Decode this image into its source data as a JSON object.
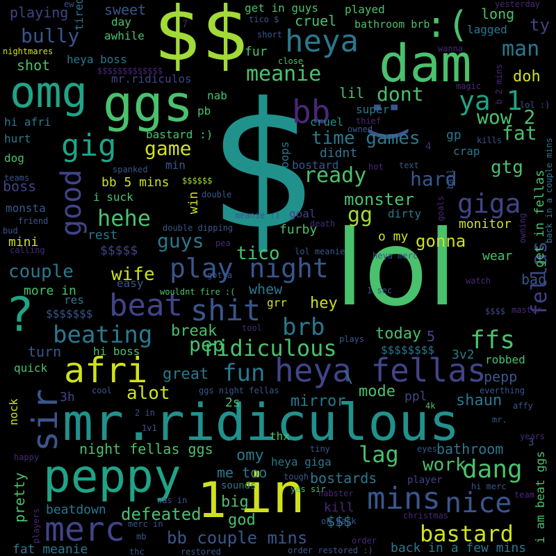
{
  "background": "#000000",
  "palette": {
    "yellow": "#d0e11c",
    "lime": "#a2da37",
    "green": "#4ac16d",
    "aqua": "#20a386",
    "teal": "#21918c",
    "tealblue": "#2a788e",
    "blue": "#39568c",
    "indigo": "#414487",
    "purple": "#482878",
    "violet": "#440154"
  },
  "words": [
    {
      "text": "$",
      "color": "teal"
    },
    {
      "text": "lol",
      "color": "green"
    },
    {
      "text": "$$",
      "color": "lime"
    },
    {
      "text": "mr.ridiculous",
      "color": "teal"
    },
    {
      "text": "dam",
      "color": "green"
    },
    {
      "text": "ggs",
      "color": "green"
    },
    {
      "text": "omg",
      "color": "aqua"
    },
    {
      "text": "peppy",
      "color": "aqua"
    },
    {
      "text": "in",
      "color": "yellow"
    },
    {
      "text": "1",
      "color": "yellow"
    },
    {
      "text": ":)",
      "color": "blue"
    },
    {
      "text": "heya fellas",
      "color": "indigo"
    },
    {
      "text": "merc",
      "color": "indigo"
    },
    {
      "text": "?",
      "color": "aqua"
    },
    {
      "text": "afri",
      "color": "yellow"
    },
    {
      "text": "sir",
      "color": "blue"
    },
    {
      "text": "mins",
      "color": "blue"
    },
    {
      "text": "nice",
      "color": "blue"
    },
    {
      "text": "beat",
      "color": "indigo"
    },
    {
      "text": "shit",
      "color": "blue"
    },
    {
      "text": "heya",
      "color": "tealblue"
    },
    {
      "text": "bb",
      "color": "purple"
    },
    {
      "text": "gig",
      "color": "aqua"
    },
    {
      "text": "good",
      "color": "indigo"
    },
    {
      "text": "giga",
      "color": "indigo"
    },
    {
      "text": "ya 1",
      "color": "aqua"
    },
    {
      "text": "play night",
      "color": "blue"
    },
    {
      "text": "beating",
      "color": "tealblue"
    },
    {
      "text": "ridiculous",
      "color": "green"
    },
    {
      "text": "brb",
      "color": "tealblue"
    },
    {
      "text": "ffs",
      "color": "green"
    },
    {
      "text": "dang",
      "color": "green"
    },
    {
      "text": "bastard",
      "color": "yellow"
    },
    {
      "text": "bb couple mins",
      "color": "blue"
    },
    {
      "text": ":(",
      "color": "green"
    },
    {
      "text": "fellas",
      "color": "indigo"
    },
    {
      "text": "meanie",
      "color": "green"
    },
    {
      "text": "hehe",
      "color": "green"
    },
    {
      "text": "fun",
      "color": "tealblue"
    },
    {
      "text": "pep",
      "color": "green"
    },
    {
      "text": "lag",
      "color": "green"
    },
    {
      "text": "wow 2",
      "color": "green"
    },
    {
      "text": "man",
      "color": "tealblue"
    },
    {
      "text": "bully",
      "color": "blue"
    },
    {
      "text": "gg",
      "color": "lime"
    },
    {
      "text": "game",
      "color": "yellow"
    },
    {
      "text": "fat",
      "color": "green"
    },
    {
      "text": "ready",
      "color": "green"
    },
    {
      "text": "hard",
      "color": "blue"
    },
    {
      "text": "gtg",
      "color": "green"
    },
    {
      "text": "time games",
      "color": "tealblue"
    },
    {
      "text": "dont",
      "color": "green"
    },
    {
      "text": "guys",
      "color": "tealblue"
    },
    {
      "text": "couple",
      "color": "tealblue"
    },
    {
      "text": "wife",
      "color": "yellow"
    },
    {
      "text": "alot",
      "color": "yellow"
    },
    {
      "text": "work",
      "color": "green"
    },
    {
      "text": "defeated",
      "color": "green"
    },
    {
      "text": "gonna",
      "color": "yellow"
    },
    {
      "text": "monster",
      "color": "green"
    },
    {
      "text": "tico",
      "color": "green"
    },
    {
      "text": "hey",
      "color": "yellow"
    },
    {
      "text": "break",
      "color": "green"
    },
    {
      "text": "today",
      "color": "green"
    },
    {
      "text": "mode",
      "color": "green"
    },
    {
      "text": "shaun",
      "color": "tealblue"
    },
    {
      "text": "pepp",
      "color": "blue"
    },
    {
      "text": "mirror",
      "color": "tealblue"
    },
    {
      "text": "bostards",
      "color": "tealblue"
    },
    {
      "text": "bathroom",
      "color": "tealblue"
    },
    {
      "text": "omy",
      "color": "tealblue"
    },
    {
      "text": "big",
      "color": "green"
    },
    {
      "text": "god",
      "color": "green"
    },
    {
      "text": "kill",
      "color": "purple"
    },
    {
      "text": "$$$",
      "color": "tealblue"
    },
    {
      "text": "heya giga",
      "color": "tealblue"
    },
    {
      "text": "night fellas ggs",
      "color": "green"
    },
    {
      "text": "beatdown",
      "color": "tealblue"
    },
    {
      "text": "great",
      "color": "tealblue"
    },
    {
      "text": "3h",
      "color": "indigo"
    },
    {
      "text": "2s",
      "color": "green"
    },
    {
      "text": "me too",
      "color": "tealblue"
    },
    {
      "text": "pretty",
      "color": "green"
    },
    {
      "text": "fat meanie",
      "color": "tealblue"
    },
    {
      "text": "back in a few mins",
      "color": "tealblue"
    },
    {
      "text": "i am beat ggs",
      "color": "green"
    },
    {
      "text": "get in fellas",
      "color": "green"
    },
    {
      "text": "doh",
      "color": "yellow"
    },
    {
      "text": "long",
      "color": "green"
    },
    {
      "text": "lagged",
      "color": "tealblue"
    },
    {
      "text": "ty",
      "color": "indigo"
    },
    {
      "text": "heya boss",
      "color": "tealblue"
    },
    {
      "text": "playing",
      "color": "indigo"
    },
    {
      "text": "sweet",
      "color": "blue"
    },
    {
      "text": "day",
      "color": "green"
    },
    {
      "text": "awhile",
      "color": "green"
    },
    {
      "text": "tired",
      "color": "tealblue"
    },
    {
      "text": "get in guys",
      "color": "green"
    },
    {
      "text": "played",
      "color": "green"
    },
    {
      "text": "cruel",
      "color": "green"
    },
    {
      "text": "bathroom brb",
      "color": "green"
    },
    {
      "text": "fur",
      "color": "green"
    },
    {
      "text": "shot",
      "color": "green"
    },
    {
      "text": "mr.ridiculos",
      "color": "indigo"
    },
    {
      "text": "$$$$$$$$$$$$$",
      "color": "purple"
    },
    {
      "text": "nab",
      "color": "green"
    },
    {
      "text": "pb",
      "color": "green"
    },
    {
      "text": "lil",
      "color": "green"
    },
    {
      "text": "super",
      "color": "tealblue"
    },
    {
      "text": "didnt",
      "color": "tealblue"
    },
    {
      "text": "cruel",
      "color": "teal"
    },
    {
      "text": "hi afri",
      "color": "tealblue"
    },
    {
      "text": "hurt",
      "color": "tealblue"
    },
    {
      "text": "dog",
      "color": "green"
    },
    {
      "text": "bastard :)",
      "color": "green"
    },
    {
      "text": "min",
      "color": "blue"
    },
    {
      "text": "boss",
      "color": "indigo"
    },
    {
      "text": "bb 5 mins",
      "color": "yellow"
    },
    {
      "text": "i suck",
      "color": "green"
    },
    {
      "text": "win",
      "color": "yellow"
    },
    {
      "text": "monsta",
      "color": "blue"
    },
    {
      "text": "mini",
      "color": "yellow"
    },
    {
      "text": "rest",
      "color": "tealblue"
    },
    {
      "text": "$$$$$",
      "color": "indigo"
    },
    {
      "text": "more in",
      "color": "green"
    },
    {
      "text": "res",
      "color": "tealblue"
    },
    {
      "text": "$$$$$$$",
      "color": "blue"
    },
    {
      "text": "turn",
      "color": "blue"
    },
    {
      "text": "quick",
      "color": "green"
    },
    {
      "text": "hi boss",
      "color": "green"
    },
    {
      "text": "nock",
      "color": "yellow"
    },
    {
      "text": "goal",
      "color": "indigo"
    },
    {
      "text": "dirty",
      "color": "tealblue"
    },
    {
      "text": "furby",
      "color": "green"
    },
    {
      "text": "o my",
      "color": "yellow"
    },
    {
      "text": "monitor",
      "color": "yellow"
    },
    {
      "text": "wear",
      "color": "green"
    },
    {
      "text": "bad",
      "color": "blue"
    },
    {
      "text": "whew",
      "color": "tealblue"
    },
    {
      "text": "grr",
      "color": "yellow"
    },
    {
      "text": "easy",
      "color": "blue"
    },
    {
      "text": "5",
      "color": "indigo"
    },
    {
      "text": "3v2",
      "color": "tealblue"
    },
    {
      "text": "robbed",
      "color": "green"
    },
    {
      "text": "ppl",
      "color": "indigo"
    },
    {
      "text": "$$$$$$$$",
      "color": "tealblue"
    },
    {
      "text": "oops",
      "color": "tealblue"
    },
    {
      "text": "bostard",
      "color": "blue"
    },
    {
      "text": "crap",
      "color": "tealblue"
    },
    {
      "text": "gp",
      "color": "tealblue"
    },
    {
      "text": "$$$$$$",
      "color": "lime"
    },
    {
      "text": "double",
      "color": "blue"
    },
    {
      "text": "$$$$",
      "color": "indigo"
    },
    {
      "text": "1 sec",
      "color": "blue"
    },
    {
      "text": "lol meanie",
      "color": "blue"
    },
    {
      "text": "heya merc",
      "color": "blue"
    },
    {
      "text": "meanie :)",
      "color": "blue"
    },
    {
      "text": "double dipping",
      "color": "blue"
    },
    {
      "text": "wouldnt fire :(",
      "color": "green"
    },
    {
      "text": "gotta",
      "color": "blue"
    },
    {
      "text": "tool",
      "color": "purple"
    },
    {
      "text": "plays",
      "color": "blue"
    },
    {
      "text": "ggs night fellas",
      "color": "blue"
    },
    {
      "text": "4k",
      "color": "green"
    },
    {
      "text": "everthing",
      "color": "blue"
    },
    {
      "text": "affy",
      "color": "blue"
    },
    {
      "text": "mr.",
      "color": "blue"
    },
    {
      "text": "years",
      "color": "purple"
    },
    {
      "text": "hi merc",
      "color": "blue"
    },
    {
      "text": "team",
      "color": "purple"
    },
    {
      "text": "christmas",
      "color": "purple"
    },
    {
      "text": "order restored :)",
      "color": "blue"
    },
    {
      "text": "restored",
      "color": "blue"
    },
    {
      "text": "thc",
      "color": "blue"
    },
    {
      "text": "mb",
      "color": "blue"
    },
    {
      "text": "merc in",
      "color": "blue"
    },
    {
      "text": "ok back",
      "color": "blue"
    },
    {
      "text": "order",
      "color": "purple"
    },
    {
      "text": "yes sir",
      "color": "green"
    },
    {
      "text": "nabster",
      "color": "purple"
    },
    {
      "text": "tough",
      "color": "blue"
    },
    {
      "text": "player",
      "color": "indigo"
    },
    {
      "text": "sounds",
      "color": "tealblue"
    },
    {
      "text": "was in",
      "color": "blue"
    },
    {
      "text": "happy",
      "color": "purple"
    },
    {
      "text": "players",
      "color": "purple"
    },
    {
      "text": "1v1",
      "color": "blue"
    },
    {
      "text": "2 in",
      "color": "blue"
    },
    {
      "text": "cool",
      "color": "blue"
    },
    {
      "text": "tiny",
      "color": "blue"
    },
    {
      "text": "eyes",
      "color": "blue"
    },
    {
      "text": "thx",
      "color": "green"
    },
    {
      "text": "master",
      "color": "purple"
    },
    {
      "text": "watch",
      "color": "purple"
    },
    {
      "text": "owning",
      "color": "purple"
    },
    {
      "text": "back in a couple mins",
      "color": "tealblue"
    },
    {
      "text": "magic",
      "color": "purple"
    },
    {
      "text": "b 2 mins",
      "color": "purple"
    },
    {
      "text": "lol :)",
      "color": "blue"
    },
    {
      "text": "kills",
      "color": "blue"
    },
    {
      "text": "ball",
      "color": "blue"
    },
    {
      "text": "goals",
      "color": "purple"
    },
    {
      "text": "text",
      "color": "blue"
    },
    {
      "text": "hot",
      "color": "purple"
    },
    {
      "text": "thief",
      "color": "purple"
    },
    {
      "text": "owned",
      "color": "blue"
    },
    {
      "text": "spanked",
      "color": "blue"
    },
    {
      "text": "teams",
      "color": "blue"
    },
    {
      "text": "friend",
      "color": "blue"
    },
    {
      "text": "bud",
      "color": "blue"
    },
    {
      "text": "calling",
      "color": "purple"
    },
    {
      "text": "pea",
      "color": "purple"
    },
    {
      "text": "death",
      "color": "purple"
    },
    {
      "text": "nightmares",
      "color": "yellow"
    },
    {
      "text": "ew",
      "color": "blue"
    },
    {
      "text": "close",
      "color": "green"
    },
    {
      "text": "tico $",
      "color": "blue"
    },
    {
      "text": "short",
      "color": "blue"
    },
    {
      "text": "wanna",
      "color": "purple"
    },
    {
      "text": "yesterday",
      "color": "purple"
    },
    {
      "text": "7",
      "color": "purple"
    },
    {
      "text": "3",
      "color": "blue"
    },
    {
      "text": "4",
      "color": "purple"
    },
    {
      "text": "\\",
      "color": "tealblue"
    }
  ]
}
